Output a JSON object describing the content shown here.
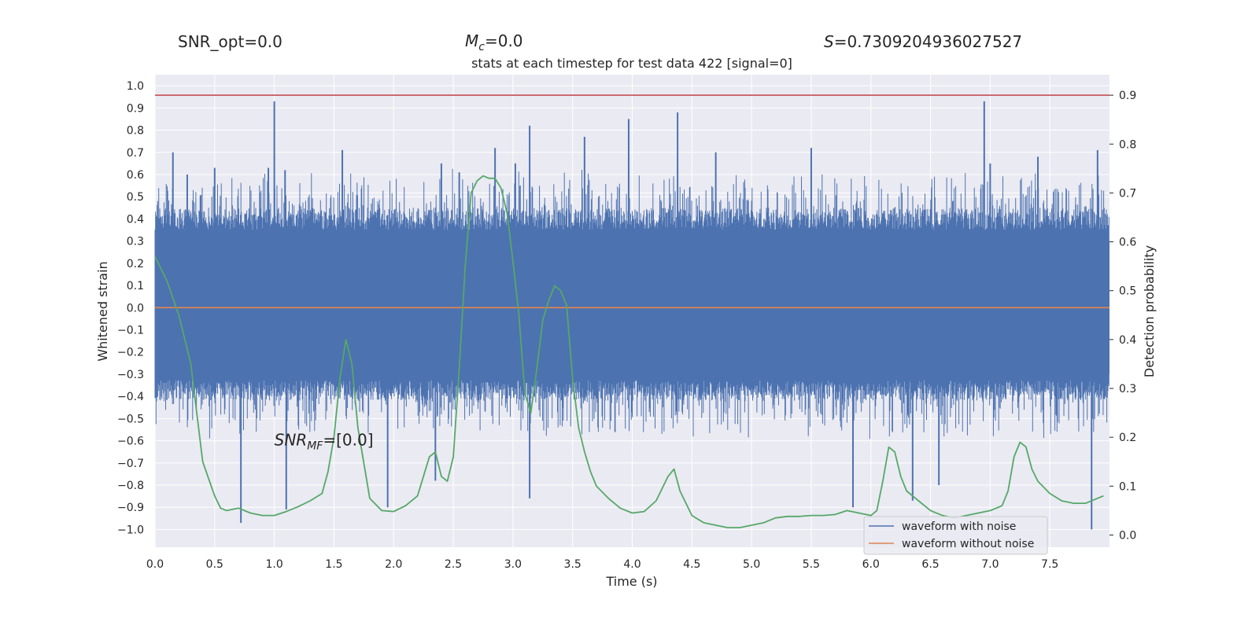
{
  "chart_data": {
    "type": "line",
    "title": "stats at each timestep for test data 422 [signal=0]",
    "header": {
      "snr_opt": "SNR_opt=0.0",
      "mc_label": "M",
      "mc_sub": "c",
      "mc_value": "=0.0",
      "s_label": "S",
      "s_value": "=0.7309204936027527"
    },
    "annotation": {
      "main": "SNR",
      "sub": "MF",
      "value": "=[0.0]",
      "x": 1.0,
      "y": -0.6
    },
    "xlabel": "Time (s)",
    "ylabel_left": "Whitened strain",
    "ylabel_right": "Detection probability",
    "xlim": [
      0.0,
      8.0
    ],
    "ylim_left": [
      -1.08,
      1.05
    ],
    "ylim_right": [
      -0.025,
      0.942
    ],
    "xticks": [
      0.0,
      0.5,
      1.0,
      1.5,
      2.0,
      2.5,
      3.0,
      3.5,
      4.0,
      4.5,
      5.0,
      5.5,
      6.0,
      6.5,
      7.0,
      7.5
    ],
    "xtick_labels": [
      "0.0",
      "0.5",
      "1.0",
      "1.5",
      "2.0",
      "2.5",
      "3.0",
      "3.5",
      "4.0",
      "4.5",
      "5.0",
      "5.5",
      "6.0",
      "6.5",
      "7.0",
      "7.5"
    ],
    "yticks_left": [
      1.0,
      0.9,
      0.8,
      0.7,
      0.6,
      0.5,
      0.4,
      0.3,
      0.2,
      0.1,
      0.0,
      -0.1,
      -0.2,
      -0.3,
      -0.4,
      -0.5,
      -0.6,
      -0.7,
      -0.8,
      -0.9,
      -1.0
    ],
    "ytick_labels_left": [
      "1.0",
      "0.9",
      "0.8",
      "0.7",
      "0.6",
      "0.5",
      "0.4",
      "0.3",
      "0.2",
      "0.1",
      "0.0",
      "−0.1",
      "−0.2",
      "−0.3",
      "−0.4",
      "−0.5",
      "−0.6",
      "−0.7",
      "−0.8",
      "−0.9",
      "−1.0"
    ],
    "yticks_right": [
      0.0,
      0.1,
      0.2,
      0.3,
      0.4,
      0.5,
      0.6,
      0.7,
      0.8,
      0.9
    ],
    "ytick_labels_right": [
      "0.0",
      "0.1",
      "0.2",
      "0.3",
      "0.4",
      "0.5",
      "0.6",
      "0.7",
      "0.8",
      "0.9"
    ],
    "threshold": 0.9,
    "noise": {
      "envelope_top": 0.45,
      "envelope_bottom": -0.42
    },
    "spikes": [
      {
        "x": 0.15,
        "y": 0.7
      },
      {
        "x": 0.27,
        "y": 0.6
      },
      {
        "x": 0.5,
        "y": 0.63
      },
      {
        "x": 0.72,
        "y": -0.97
      },
      {
        "x": 0.95,
        "y": 0.63
      },
      {
        "x": 1.0,
        "y": 0.93
      },
      {
        "x": 1.09,
        "y": 0.62
      },
      {
        "x": 1.1,
        "y": -0.91
      },
      {
        "x": 1.57,
        "y": 0.71
      },
      {
        "x": 1.95,
        "y": -0.9
      },
      {
        "x": 2.35,
        "y": -0.78
      },
      {
        "x": 2.55,
        "y": 0.61
      },
      {
        "x": 2.85,
        "y": 0.72
      },
      {
        "x": 3.02,
        "y": 0.65
      },
      {
        "x": 3.14,
        "y": 0.82
      },
      {
        "x": 3.14,
        "y": -0.86
      },
      {
        "x": 3.6,
        "y": 0.77
      },
      {
        "x": 3.97,
        "y": 0.85
      },
      {
        "x": 4.38,
        "y": 0.88
      },
      {
        "x": 5.5,
        "y": 0.72
      },
      {
        "x": 5.85,
        "y": -0.9
      },
      {
        "x": 6.35,
        "y": -0.87
      },
      {
        "x": 6.57,
        "y": -0.8
      },
      {
        "x": 6.95,
        "y": 0.93
      },
      {
        "x": 7.0,
        "y": 0.65
      },
      {
        "x": 7.4,
        "y": 0.68
      },
      {
        "x": 7.85,
        "y": -1.0
      },
      {
        "x": 7.9,
        "y": 0.71
      },
      {
        "x": 2.4,
        "y": 0.65
      },
      {
        "x": 4.7,
        "y": 0.7
      }
    ],
    "series": [
      {
        "name": "waveform with noise",
        "color": "#4c72b0",
        "kind": "noise"
      },
      {
        "name": "waveform without noise",
        "color": "#dd8452",
        "values": [
          [
            0.0,
            0.0
          ],
          [
            8.0,
            0.0
          ]
        ]
      },
      {
        "name": "detection probability",
        "color": "#55a868",
        "axis": "right",
        "x": [
          0.0,
          0.1,
          0.2,
          0.3,
          0.4,
          0.5,
          0.55,
          0.6,
          0.7,
          0.8,
          0.9,
          1.0,
          1.1,
          1.2,
          1.3,
          1.4,
          1.45,
          1.5,
          1.55,
          1.6,
          1.65,
          1.7,
          1.8,
          1.9,
          2.0,
          2.1,
          2.2,
          2.3,
          2.35,
          2.4,
          2.45,
          2.5,
          2.55,
          2.6,
          2.65,
          2.7,
          2.75,
          2.8,
          2.85,
          2.9,
          2.95,
          3.0,
          3.05,
          3.1,
          3.15,
          3.2,
          3.25,
          3.3,
          3.35,
          3.4,
          3.45,
          3.5,
          3.55,
          3.6,
          3.65,
          3.7,
          3.8,
          3.9,
          4.0,
          4.1,
          4.2,
          4.3,
          4.35,
          4.4,
          4.5,
          4.6,
          4.7,
          4.8,
          4.9,
          5.0,
          5.1,
          5.2,
          5.3,
          5.4,
          5.5,
          5.6,
          5.7,
          5.8,
          5.9,
          6.0,
          6.05,
          6.1,
          6.15,
          6.2,
          6.25,
          6.3,
          6.4,
          6.5,
          6.6,
          6.7,
          6.8,
          6.9,
          7.0,
          7.1,
          7.15,
          7.2,
          7.25,
          7.3,
          7.35,
          7.4,
          7.5,
          7.6,
          7.7,
          7.8,
          7.9,
          7.95
        ],
        "values": [
          0.57,
          0.52,
          0.45,
          0.35,
          0.15,
          0.08,
          0.055,
          0.05,
          0.055,
          0.045,
          0.04,
          0.04,
          0.048,
          0.058,
          0.07,
          0.085,
          0.13,
          0.2,
          0.32,
          0.4,
          0.35,
          0.22,
          0.075,
          0.05,
          0.048,
          0.06,
          0.08,
          0.16,
          0.17,
          0.12,
          0.11,
          0.16,
          0.34,
          0.55,
          0.7,
          0.725,
          0.735,
          0.73,
          0.73,
          0.71,
          0.66,
          0.56,
          0.45,
          0.29,
          0.25,
          0.34,
          0.44,
          0.48,
          0.51,
          0.5,
          0.47,
          0.32,
          0.22,
          0.17,
          0.13,
          0.1,
          0.075,
          0.055,
          0.045,
          0.048,
          0.07,
          0.12,
          0.135,
          0.09,
          0.04,
          0.025,
          0.02,
          0.015,
          0.015,
          0.02,
          0.025,
          0.035,
          0.038,
          0.038,
          0.04,
          0.04,
          0.042,
          0.05,
          0.045,
          0.04,
          0.05,
          0.11,
          0.18,
          0.17,
          0.12,
          0.09,
          0.07,
          0.05,
          0.04,
          0.035,
          0.04,
          0.045,
          0.05,
          0.06,
          0.09,
          0.16,
          0.19,
          0.18,
          0.135,
          0.11,
          0.085,
          0.07,
          0.065,
          0.065,
          0.075,
          0.08
        ]
      }
    ],
    "legend": {
      "placement": "lower right",
      "entries": [
        "waveform with noise",
        "waveform without noise"
      ]
    },
    "grid": true,
    "colors": {
      "axes_bg": "#eaeaf2",
      "grid": "#ffffff",
      "threshold": "#c44e52"
    }
  }
}
